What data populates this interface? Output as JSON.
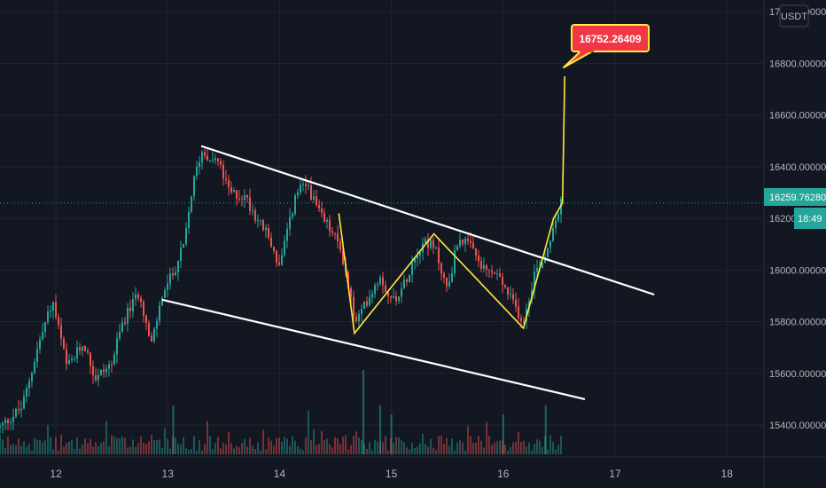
{
  "chart_data": {
    "type": "candlestick",
    "quote_currency": "USDT",
    "y_ticks": [
      15400,
      15600,
      15800,
      16000,
      16200,
      16400,
      16600,
      16800,
      17000
    ],
    "y_tick_labels": [
      "15400.00000",
      "15600.00000",
      "15800.00000",
      "16000.00000",
      "16200.00000",
      "16400.00000",
      "16600.00000",
      "16800.00000",
      "17000.00000"
    ],
    "x_ticks": [
      12,
      13,
      14,
      15,
      16,
      17,
      18
    ],
    "x_tick_labels": [
      "12",
      "13",
      "14",
      "15",
      "16",
      "17",
      "18"
    ],
    "last_price": 16259.7628,
    "last_price_label": "16259.76280",
    "countdown_label": "18:49",
    "target_label": "16752.26409",
    "target_price": 16752.26409,
    "trendlines": [
      {
        "name": "upper-resistance",
        "color": "#ffffff",
        "points": [
          [
            13.3,
            16480
          ],
          [
            17.35,
            15905
          ]
        ]
      },
      {
        "name": "lower-support",
        "color": "#ffffff",
        "points": [
          [
            12.95,
            15885
          ],
          [
            16.73,
            15500
          ]
        ]
      }
    ],
    "zigzag": {
      "color": "#ffeb3b",
      "points": [
        [
          14.53,
          16220
        ],
        [
          14.67,
          15755
        ],
        [
          15.38,
          16140
        ],
        [
          15.72,
          15985
        ],
        [
          16.18,
          15775
        ],
        [
          16.45,
          16200
        ],
        [
          16.53,
          16259.76
        ],
        [
          16.55,
          16750
        ]
      ]
    },
    "path": [
      [
        11.5,
        15390
      ],
      [
        11.7,
        15470
      ],
      [
        11.85,
        15720
      ],
      [
        11.97,
        15880
      ],
      [
        12.1,
        15620
      ],
      [
        12.25,
        15720
      ],
      [
        12.35,
        15580
      ],
      [
        12.5,
        15640
      ],
      [
        12.6,
        15800
      ],
      [
        12.75,
        15920
      ],
      [
        12.85,
        15700
      ],
      [
        12.95,
        15900
      ],
      [
        13.05,
        15990
      ],
      [
        13.15,
        16100
      ],
      [
        13.22,
        16320
      ],
      [
        13.3,
        16460
      ],
      [
        13.45,
        16420
      ],
      [
        13.55,
        16300
      ],
      [
        13.7,
        16280
      ],
      [
        13.8,
        16200
      ],
      [
        13.9,
        16130
      ],
      [
        14.0,
        16010
      ],
      [
        14.15,
        16300
      ],
      [
        14.25,
        16330
      ],
      [
        14.35,
        16220
      ],
      [
        14.45,
        16160
      ],
      [
        14.55,
        16080
      ],
      [
        14.68,
        15790
      ],
      [
        14.8,
        15900
      ],
      [
        14.9,
        15980
      ],
      [
        15.0,
        15880
      ],
      [
        15.1,
        15930
      ],
      [
        15.2,
        16050
      ],
      [
        15.3,
        16120
      ],
      [
        15.4,
        16070
      ],
      [
        15.5,
        15920
      ],
      [
        15.6,
        16130
      ],
      [
        15.72,
        16080
      ],
      [
        15.82,
        16000
      ],
      [
        15.95,
        15980
      ],
      [
        16.05,
        15900
      ],
      [
        16.18,
        15800
      ],
      [
        16.28,
        15990
      ],
      [
        16.38,
        16060
      ],
      [
        16.45,
        16180
      ],
      [
        16.52,
        16259.76
      ]
    ],
    "volume_spikes": [
      [
        13.05,
        0.55
      ],
      [
        14.75,
        0.95
      ],
      [
        14.9,
        0.55
      ],
      [
        15.0,
        0.45
      ],
      [
        16.0,
        0.45
      ],
      [
        16.38,
        0.55
      ]
    ]
  },
  "colors": {
    "background": "#131722",
    "up": "#26a69a",
    "down": "#ef5350",
    "grid": "#1f2430",
    "price_line": "#26a69a",
    "trendline": "#ffffff",
    "zigzag": "#ffeb3b",
    "target": "#f23645",
    "target_border": "#ffeb3b"
  }
}
